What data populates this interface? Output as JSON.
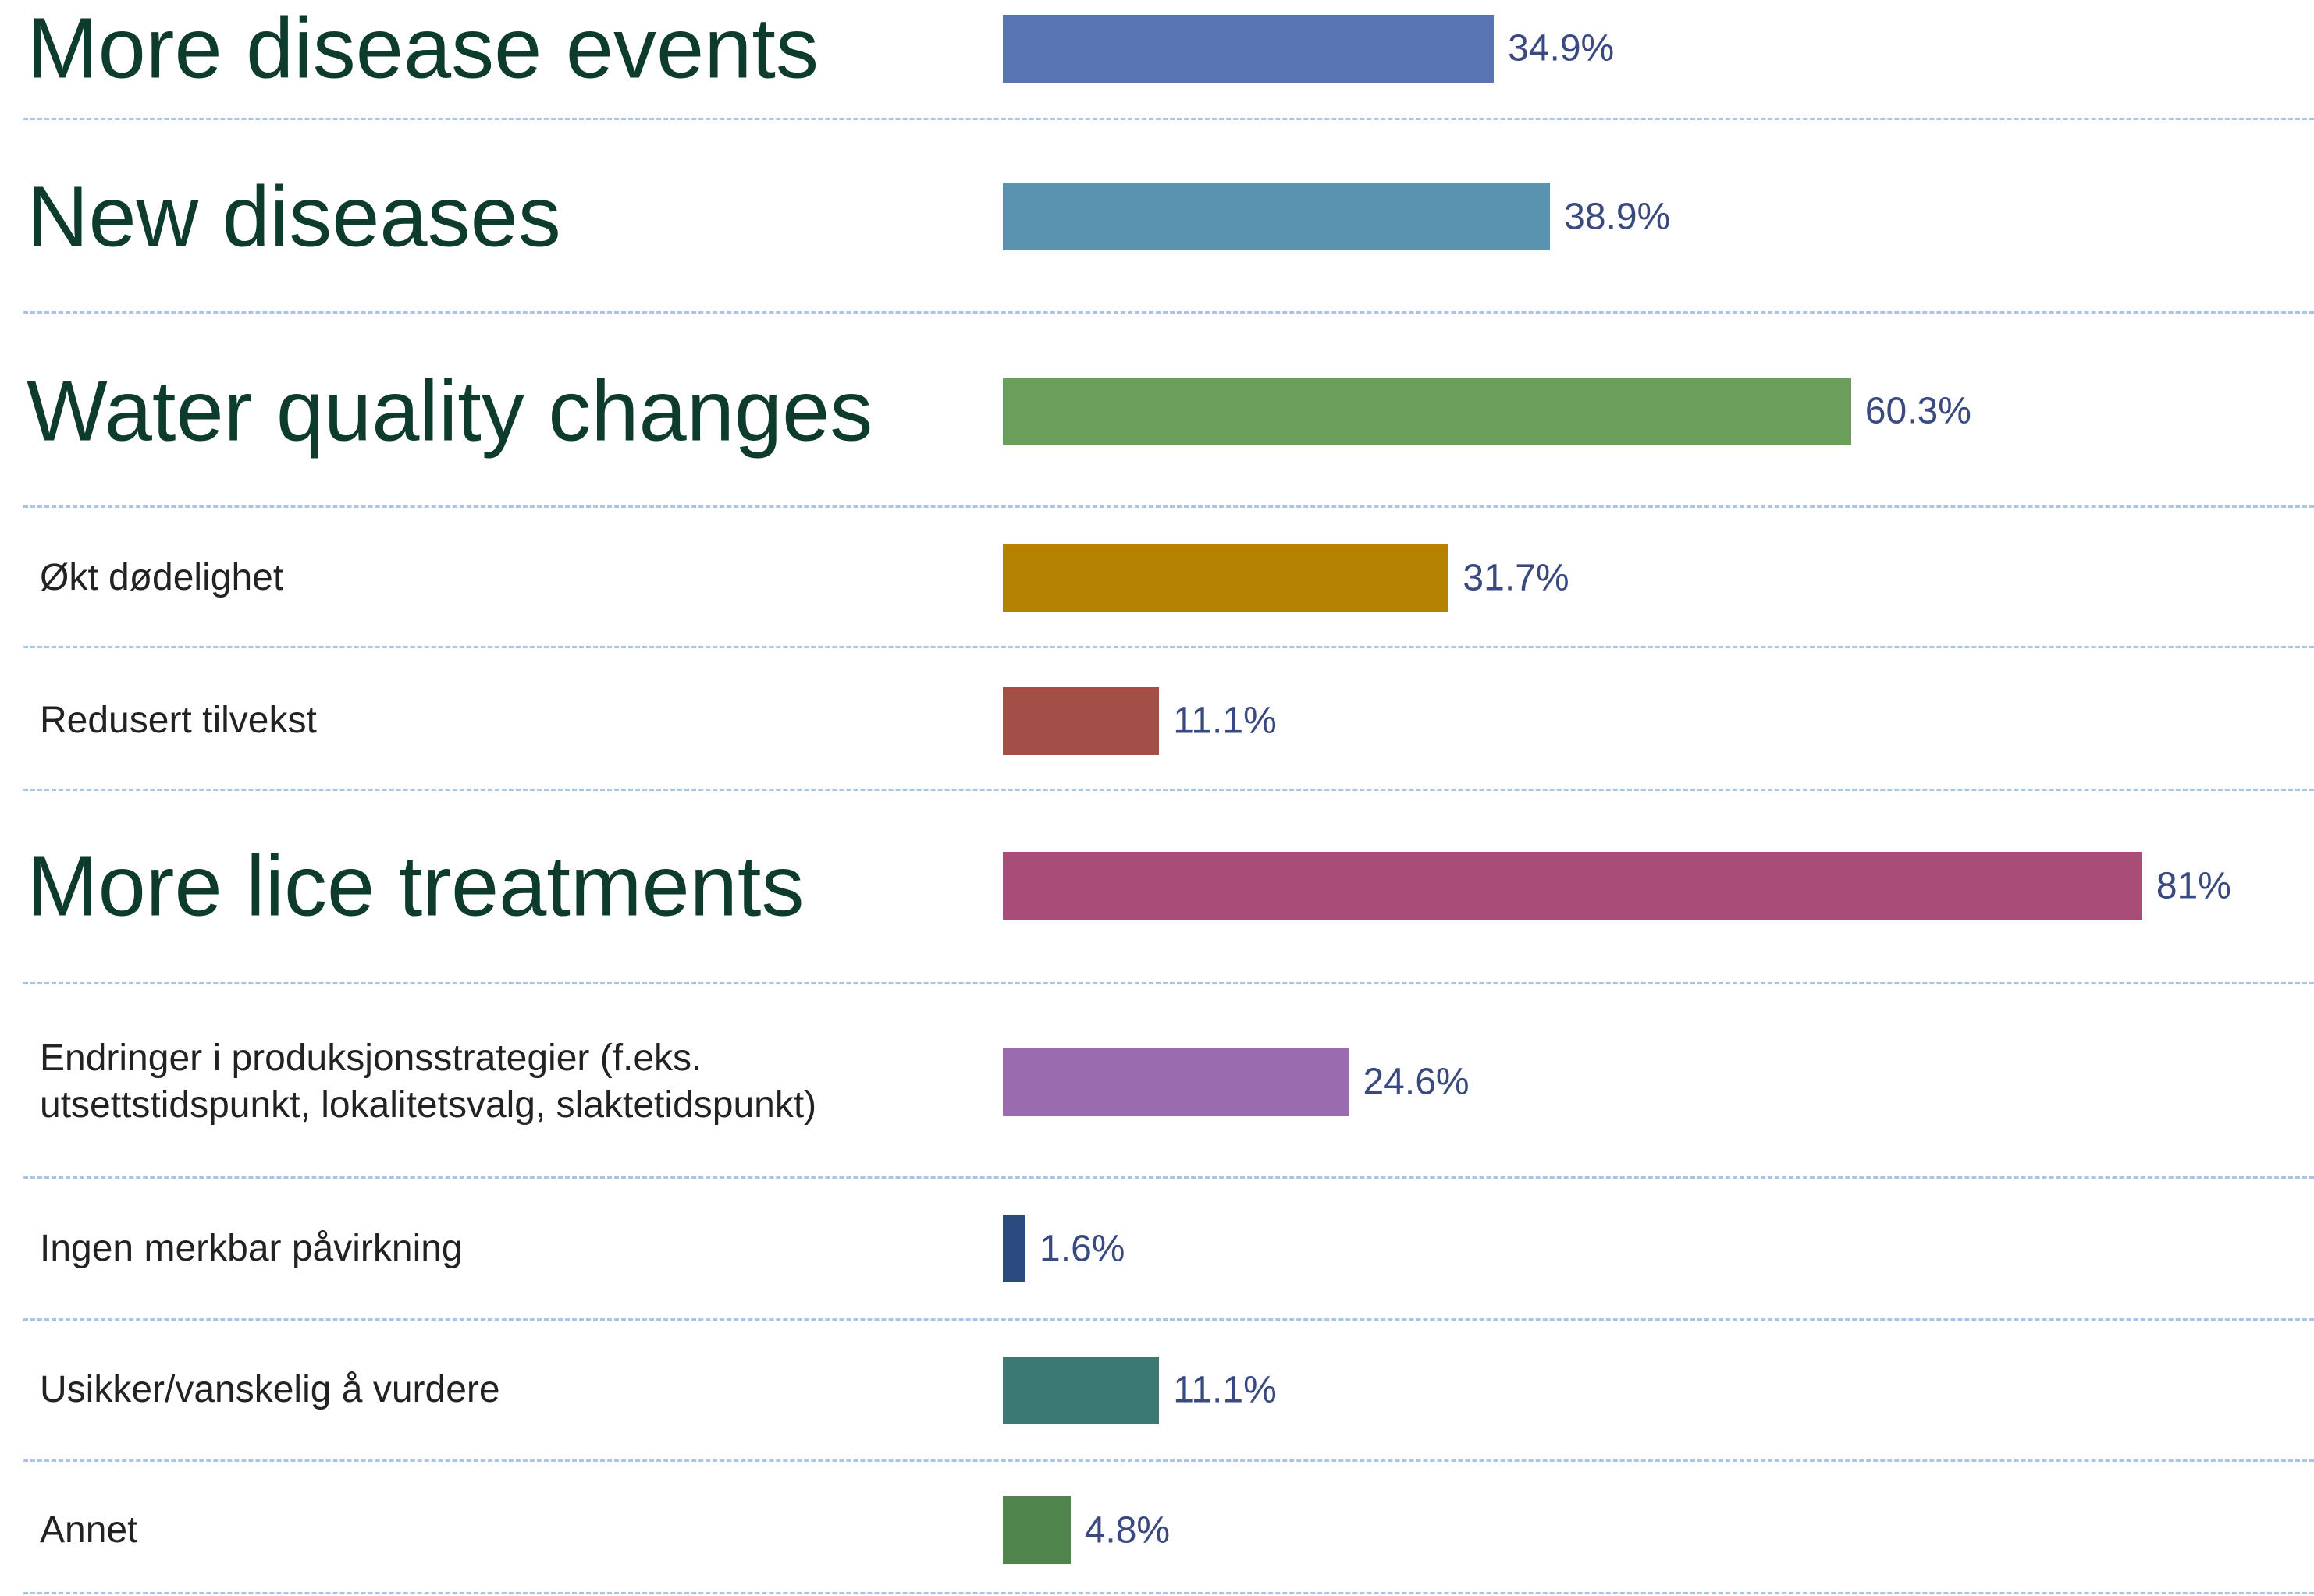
{
  "chart_data": {
    "type": "bar",
    "orientation": "horizontal",
    "categories": [
      "More disease events",
      "New diseases",
      "Water quality changes",
      "Økt dødelighet",
      "Redusert tilvekst",
      "More lice treatments",
      "Endringer i produksjonsstrategier (f.eks.\nutsettstidspunkt, lokalitetsvalg, slaktetidspunkt)",
      "Ingen merkbar påvirkning",
      "Usikker/vanskelig å vurdere",
      "Annet"
    ],
    "values": [
      34.9,
      38.9,
      60.3,
      31.7,
      11.1,
      81,
      24.6,
      1.6,
      11.1,
      4.8
    ],
    "value_labels": [
      "34.9%",
      "38.9%",
      "60.3%",
      "31.7%",
      "11.1%",
      "81%",
      "24.6%",
      "1.6%",
      "11.1%",
      "4.8%"
    ],
    "colors": [
      "#5874b3",
      "#5a93b0",
      "#6a9e5a",
      "#b58100",
      "#a34f48",
      "#a84d77",
      "#9b6bb0",
      "#2a4a80",
      "#3a7a72",
      "#4f844d"
    ]
  }
}
